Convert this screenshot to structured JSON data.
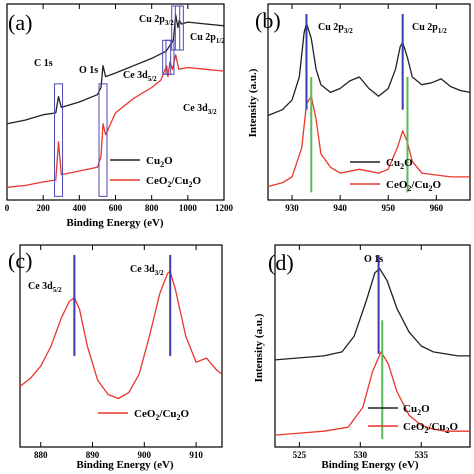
{
  "colors": {
    "black_series": "#222222",
    "red_series": "#e8372b",
    "blue_marker": "#3b3bb0",
    "green_marker": "#5cb85c",
    "box_blue": "#4a4ab8"
  },
  "chart_data": [
    {
      "id": "a",
      "type": "line",
      "panel_label": "(a)",
      "xlabel": "Binding Energy (eV)",
      "ylabel": "",
      "xlim": [
        0,
        1200
      ],
      "xticks": [
        "0",
        "200",
        "400",
        "600",
        "800",
        "1000",
        "1200"
      ],
      "annotations": [
        {
          "text": "C 1s",
          "x": 285
        },
        {
          "text": "O 1s",
          "x": 531
        },
        {
          "text": "Cu 2p3/2",
          "x": 933
        },
        {
          "text": "Cu 2p1/2",
          "x": 953
        },
        {
          "text": "Ce 3d5/2",
          "x": 883
        },
        {
          "text": "Ce 3d3/2",
          "x": 901
        }
      ],
      "legend": [
        "Cu2O",
        "CeO2/Cu2O"
      ],
      "legend_position": "lower-right",
      "series": [
        {
          "name": "Cu2O",
          "color": "black",
          "x": [
            0,
            100,
            200,
            270,
            285,
            300,
            400,
            500,
            520,
            531,
            545,
            600,
            700,
            800,
            880,
            920,
            933,
            945,
            953,
            965,
            1000,
            1100,
            1200
          ],
          "y": [
            0.4,
            0.42,
            0.45,
            0.46,
            0.55,
            0.49,
            0.52,
            0.56,
            0.6,
            0.72,
            0.66,
            0.68,
            0.72,
            0.76,
            0.8,
            0.86,
            1.0,
            0.93,
            0.97,
            0.95,
            0.96,
            0.95,
            0.94
          ]
        },
        {
          "name": "CeO2/Cu2O",
          "color": "red",
          "x": [
            0,
            100,
            200,
            270,
            285,
            300,
            400,
            500,
            520,
            531,
            545,
            600,
            700,
            800,
            850,
            883,
            890,
            901,
            915,
            933,
            950,
            1000,
            1100,
            1200
          ],
          "y": [
            0.05,
            0.06,
            0.08,
            0.09,
            0.3,
            0.12,
            0.14,
            0.16,
            0.22,
            0.4,
            0.34,
            0.46,
            0.54,
            0.6,
            0.64,
            0.72,
            0.66,
            0.74,
            0.7,
            0.78,
            0.7,
            0.71,
            0.7,
            0.69
          ]
        }
      ]
    },
    {
      "id": "b",
      "type": "line",
      "panel_label": "(b)",
      "xlabel": "",
      "ylabel": "Intensity (a.u.)",
      "xlim": [
        925,
        967
      ],
      "xticks": [
        "930",
        "940",
        "950",
        "960"
      ],
      "annotations": [
        {
          "text": "Cu 2p3/2",
          "x": 933
        },
        {
          "text": "Cu 2p1/2",
          "x": 953
        }
      ],
      "legend": [
        "Cu2O",
        "CeO2/Cu2O"
      ],
      "legend_position": "lower-right",
      "series": [
        {
          "name": "Cu2O",
          "color": "black",
          "x": [
            925,
            928,
            930,
            931.5,
            932.5,
            933,
            934,
            935,
            936,
            938,
            940,
            942,
            944,
            946,
            948,
            950,
            951.5,
            952.5,
            953,
            954,
            955,
            957,
            959,
            961,
            963,
            965,
            967
          ],
          "y": [
            0.42,
            0.45,
            0.5,
            0.62,
            0.85,
            0.9,
            0.82,
            0.66,
            0.58,
            0.54,
            0.56,
            0.6,
            0.62,
            0.56,
            0.52,
            0.56,
            0.66,
            0.78,
            0.8,
            0.72,
            0.62,
            0.58,
            0.59,
            0.61,
            0.57,
            0.55,
            0.54
          ]
        },
        {
          "name": "CeO2/Cu2O",
          "color": "red",
          "x": [
            925,
            928,
            930,
            932,
            933,
            934,
            935,
            936,
            938,
            940,
            942,
            944,
            946,
            948,
            950,
            952,
            953,
            954,
            955,
            957,
            960,
            963,
            967
          ],
          "y": [
            0.05,
            0.07,
            0.1,
            0.25,
            0.48,
            0.52,
            0.4,
            0.22,
            0.15,
            0.12,
            0.13,
            0.14,
            0.13,
            0.12,
            0.14,
            0.26,
            0.34,
            0.28,
            0.18,
            0.12,
            0.11,
            0.1,
            0.1
          ]
        }
      ]
    },
    {
      "id": "c",
      "type": "line",
      "panel_label": "(c)",
      "xlabel": "Binding Energy (eV)",
      "ylabel": "",
      "xlim": [
        876,
        915
      ],
      "xticks": [
        "880",
        "890",
        "900",
        "910"
      ],
      "annotations": [
        {
          "text": "Ce 3d5/2",
          "x": 886.5
        },
        {
          "text": "Ce 3d3/2",
          "x": 905
        }
      ],
      "legend": [
        "CeO2/Cu2O"
      ],
      "legend_position": "lower-right",
      "series": [
        {
          "name": "CeO2/Cu2O",
          "color": "red",
          "x": [
            876,
            878,
            880,
            882,
            884,
            885.5,
            886.5,
            887.5,
            889,
            891,
            893,
            895,
            897,
            899,
            901,
            903,
            904.5,
            905,
            906,
            908,
            910,
            912,
            914,
            915
          ],
          "y": [
            0.3,
            0.34,
            0.4,
            0.5,
            0.64,
            0.72,
            0.74,
            0.68,
            0.5,
            0.33,
            0.26,
            0.24,
            0.27,
            0.36,
            0.55,
            0.76,
            0.86,
            0.87,
            0.78,
            0.55,
            0.42,
            0.44,
            0.38,
            0.36
          ]
        }
      ]
    },
    {
      "id": "d",
      "type": "line",
      "panel_label": "(d)",
      "xlabel": "Binding Energy (eV)",
      "ylabel": "Intensity (a.u.)",
      "xlim": [
        523,
        539
      ],
      "xticks": [
        "525",
        "530",
        "535"
      ],
      "annotations": [
        {
          "text": "O 1s",
          "x": 531.5
        }
      ],
      "legend": [
        "Cu2O",
        "CeO2/Cu2O"
      ],
      "legend_position": "lower-right",
      "series": [
        {
          "name": "Cu2O",
          "color": "black",
          "x": [
            523,
            525,
            527,
            528.5,
            529.5,
            530.5,
            531.2,
            531.6,
            532.2,
            533,
            534,
            535,
            536,
            537,
            538,
            539
          ],
          "y": [
            0.42,
            0.43,
            0.44,
            0.46,
            0.54,
            0.72,
            0.86,
            0.88,
            0.82,
            0.68,
            0.56,
            0.49,
            0.46,
            0.45,
            0.44,
            0.44
          ]
        },
        {
          "name": "CeO2/Cu2O",
          "color": "red",
          "x": [
            523,
            525,
            527,
            529,
            530.2,
            531,
            531.7,
            532.3,
            533,
            534,
            535,
            536,
            537,
            538,
            539
          ],
          "y": [
            0.04,
            0.05,
            0.06,
            0.08,
            0.18,
            0.36,
            0.46,
            0.4,
            0.26,
            0.14,
            0.09,
            0.07,
            0.06,
            0.06,
            0.06
          ]
        }
      ]
    }
  ],
  "labels": {
    "a": {
      "panel": "(a)",
      "c1s": "C 1s",
      "o1s": "O 1s",
      "cu2p32_main": "Cu 2p",
      "cu2p32_sub": "3/2",
      "cu2p12_main": "Cu 2p",
      "cu2p12_sub": "1/2",
      "ce3d52_main": "Ce 3d",
      "ce3d52_sub": "5/2",
      "ce3d32_main": "Ce 3d",
      "ce3d32_sub": "3/2",
      "xlabel": "Binding Energy (eV)"
    },
    "b": {
      "panel": "(b)",
      "cu2p32_main": "Cu 2p",
      "cu2p32_sub": "3/2",
      "cu2p12_main": "Cu 2p",
      "cu2p12_sub": "1/2",
      "ylabel": "Intensity (a.u.)"
    },
    "c": {
      "panel": "(c)",
      "ce3d52_main": "Ce 3d",
      "ce3d52_sub": "5/2",
      "ce3d32_main": "Ce 3d",
      "ce3d32_sub": "3/2",
      "xlabel": "Binding Energy (eV)"
    },
    "d": {
      "panel": "(d)",
      "o1s": "O 1s",
      "ylabel": "Intensity (a.u.)",
      "xlabel": "Binding Energy (eV)"
    },
    "legend": {
      "cu2o_main": "Cu",
      "cu2o_sub": "2",
      "cu2o_end": "O",
      "ceo2_a": "CeO",
      "ceo2_sub": "2",
      "ceo2_b": "/Cu",
      "ceo2_sub2": "2",
      "ceo2_c": "O"
    }
  }
}
